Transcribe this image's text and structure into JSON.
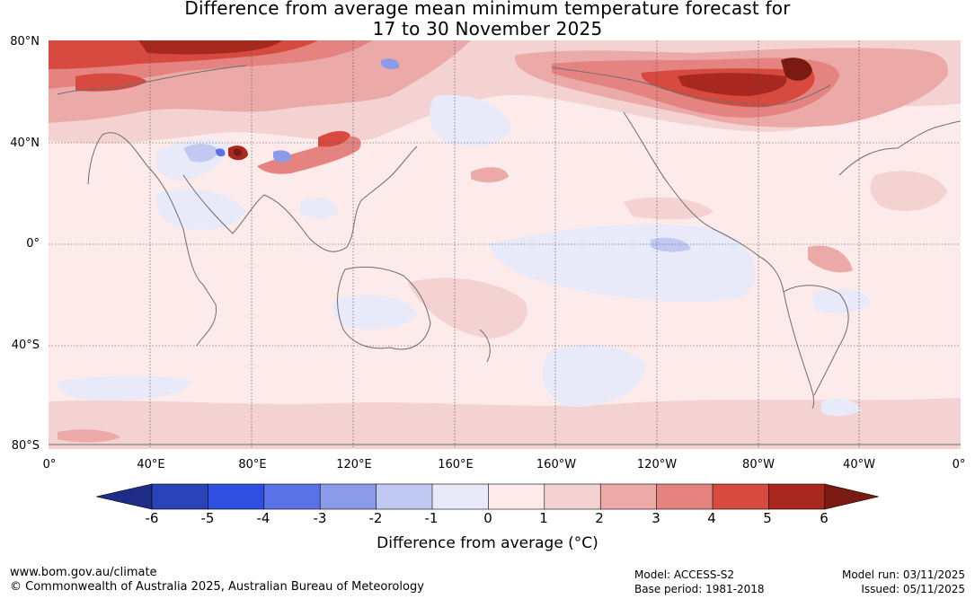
{
  "title": {
    "line1": "Difference from average mean minimum temperature forecast for",
    "line2": "17 to 30 November 2025"
  },
  "axes": {
    "lat_labels": [
      "80°N",
      "40°N",
      "0°",
      "40°S",
      "80°S"
    ],
    "lon_labels": [
      "0°",
      "40°E",
      "80°E",
      "120°E",
      "160°E",
      "160°W",
      "120°W",
      "80°W",
      "40°W",
      "0°"
    ]
  },
  "colorbar": {
    "ticks": [
      "-6",
      "-5",
      "-4",
      "-3",
      "-2",
      "-1",
      "0",
      "1",
      "2",
      "3",
      "4",
      "5",
      "6"
    ],
    "colors": [
      "#1f2d8a",
      "#2a43b8",
      "#2f4fe0",
      "#5b72e6",
      "#8b9ae9",
      "#c1c8f2",
      "#e8eafa",
      "#fcebea",
      "#f4d2d2",
      "#ebaaa8",
      "#e4837f",
      "#d74a40",
      "#a8281f",
      "#7a1b12"
    ],
    "label": "Difference from average (°C)"
  },
  "footer": {
    "website": "www.bom.gov.au/climate",
    "copyright": "© Commonwealth of Australia 2025, Australian Bureau of Meteorology",
    "model": "Model: ACCESS-S2",
    "base_period": "Base period: 1981-2018",
    "model_run": "Model run: 03/11/2025",
    "issued": "Issued: 05/11/2025"
  }
}
